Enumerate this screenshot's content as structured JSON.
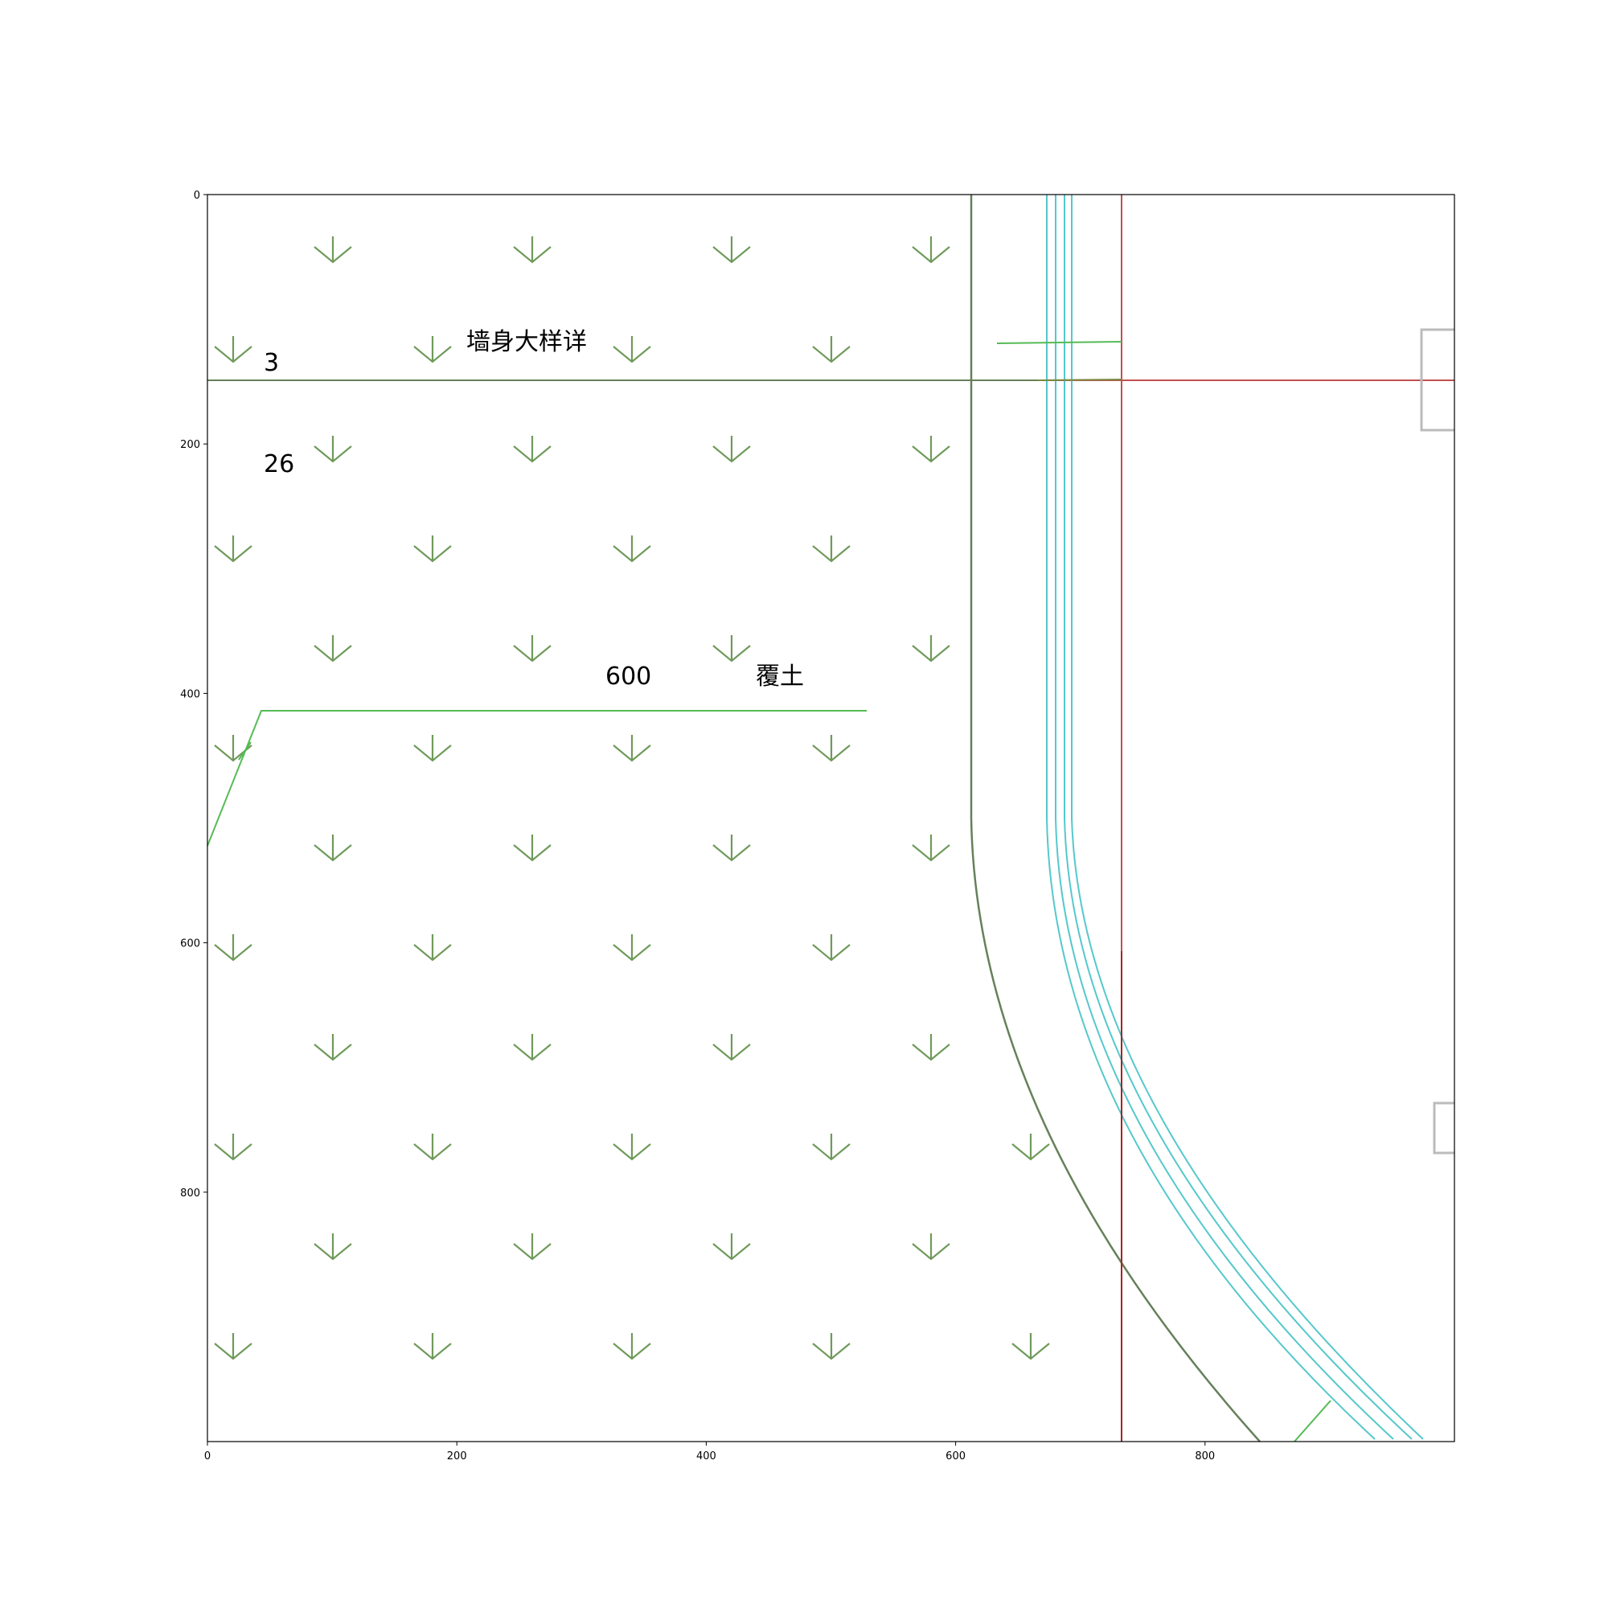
{
  "plot": {
    "x_range": [
      0,
      1000
    ],
    "y_range": [
      0,
      1000
    ],
    "y_inverted": true,
    "x_ticks": [
      "0",
      "200",
      "400",
      "600",
      "800"
    ],
    "y_ticks": [
      "0",
      "200",
      "400",
      "600",
      "800"
    ]
  },
  "labels": {
    "title_note": "墙身大样详",
    "dim_3": "3",
    "dim_26": "26",
    "dim_600": "600",
    "soil": "覆土"
  },
  "colors": {
    "hatch": "#6f9a5a",
    "wall_line": "#66805a",
    "green_line": "#55bb55",
    "cyan_line": "#55c8cc",
    "red_line": "#c05050",
    "red_dark": "#aa2222",
    "gray_box": "#bbbbbb"
  },
  "hatch_symbol": "arrow-down-icon"
}
